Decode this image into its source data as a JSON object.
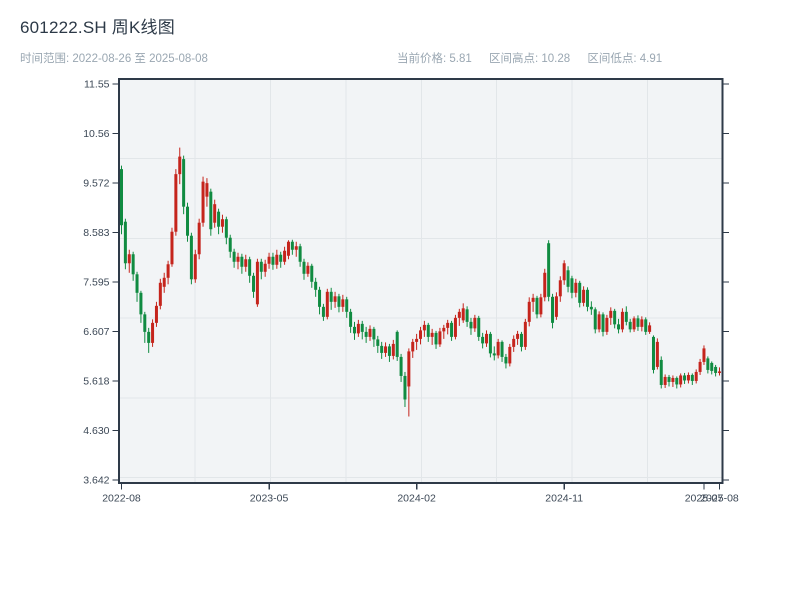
{
  "header": {
    "title": "601222.SH 周K线图",
    "subtitle": "时间范围: 2022-08-26 至 2025-08-08",
    "info": {
      "current": "当前价格: 5.81",
      "range_high": "区间高点: 10.28",
      "range_low": "区间低点: 4.91"
    }
  },
  "chart_data": {
    "type": "candlestick",
    "title": "601222.SH 周K线图",
    "frequency": "weekly",
    "date_start": "2022-08-26",
    "date_end": "2025-08-08",
    "current_price": 5.81,
    "range_high": 10.28,
    "range_low": 4.91,
    "ylim": [
      3.642,
      11.55
    ],
    "y_ticks": [
      "11.55",
      "10.56",
      "9.572",
      "8.583",
      "7.595",
      "6.607",
      "5.618",
      "4.630",
      "3.642"
    ],
    "x_ticks": [
      {
        "week_index": 0,
        "label": "2022-08"
      },
      {
        "week_index": 38,
        "label": "2023-05"
      },
      {
        "week_index": 76,
        "label": "2024-02"
      },
      {
        "week_index": 114,
        "label": "2024-11"
      },
      {
        "week_index": 150,
        "label": "2025-07"
      },
      {
        "week_index": 154,
        "label": "2025-08"
      }
    ],
    "up_color": "#c5241c",
    "down_color": "#108b41",
    "plot_bg": "#f2f4f6",
    "grid_color": "#e2e6e9",
    "axis_color": "#2e3a48",
    "tick_label_color": "#3c4856",
    "ohlc_format": [
      "open",
      "close",
      "low",
      "high"
    ],
    "ohlc": [
      [
        9.85,
        8.73,
        8.55,
        9.92
      ],
      [
        8.8,
        7.97,
        7.85,
        8.86
      ],
      [
        7.97,
        8.15,
        7.78,
        8.24
      ],
      [
        8.15,
        7.75,
        7.62,
        8.2
      ],
      [
        7.75,
        7.38,
        7.2,
        7.8
      ],
      [
        7.38,
        6.95,
        6.78,
        7.42
      ],
      [
        6.95,
        6.6,
        6.38,
        7.0
      ],
      [
        6.6,
        6.38,
        6.18,
        6.68
      ],
      [
        6.38,
        6.78,
        6.3,
        6.85
      ],
      [
        6.78,
        7.12,
        6.7,
        7.2
      ],
      [
        7.12,
        7.58,
        7.05,
        7.66
      ],
      [
        7.5,
        7.68,
        7.38,
        7.78
      ],
      [
        7.68,
        7.95,
        7.55,
        8.02
      ],
      [
        7.95,
        8.6,
        7.9,
        8.68
      ],
      [
        8.6,
        9.75,
        8.52,
        9.85
      ],
      [
        9.75,
        10.1,
        9.55,
        10.28
      ],
      [
        10.05,
        9.1,
        8.95,
        10.12
      ],
      [
        9.1,
        8.52,
        8.4,
        9.18
      ],
      [
        8.52,
        7.65,
        7.55,
        8.58
      ],
      [
        7.65,
        8.15,
        7.58,
        8.24
      ],
      [
        8.15,
        8.78,
        8.05,
        8.86
      ],
      [
        8.78,
        9.6,
        8.7,
        9.7
      ],
      [
        9.3,
        9.57,
        9.1,
        9.67
      ],
      [
        9.4,
        8.65,
        8.52,
        9.46
      ],
      [
        8.78,
        9.15,
        8.68,
        9.24
      ],
      [
        9.0,
        8.7,
        8.55,
        9.06
      ],
      [
        8.7,
        8.85,
        8.58,
        8.94
      ],
      [
        8.85,
        8.48,
        8.35,
        8.9
      ],
      [
        8.48,
        8.2,
        8.08,
        8.54
      ],
      [
        8.2,
        8.0,
        7.88,
        8.26
      ],
      [
        8.0,
        8.1,
        7.85,
        8.18
      ],
      [
        8.1,
        7.9,
        7.76,
        8.16
      ],
      [
        7.9,
        8.05,
        7.8,
        8.14
      ],
      [
        8.05,
        7.72,
        7.58,
        8.1
      ],
      [
        7.72,
        7.4,
        7.28,
        7.78
      ],
      [
        7.15,
        8.0,
        7.1,
        8.06
      ],
      [
        8.0,
        7.8,
        7.65,
        8.06
      ],
      [
        7.8,
        7.96,
        7.7,
        8.04
      ],
      [
        7.96,
        8.1,
        7.86,
        8.18
      ],
      [
        8.1,
        7.94,
        7.84,
        8.18
      ],
      [
        7.94,
        8.14,
        7.86,
        8.24
      ],
      [
        8.14,
        8.0,
        7.88,
        8.2
      ],
      [
        8.0,
        8.22,
        7.94,
        8.3
      ],
      [
        8.12,
        8.4,
        8.05,
        8.43
      ],
      [
        8.4,
        8.24,
        8.14,
        8.44
      ],
      [
        8.24,
        8.31,
        8.1,
        8.4
      ],
      [
        8.31,
        8.0,
        7.9,
        8.36
      ],
      [
        8.0,
        7.76,
        7.64,
        8.06
      ],
      [
        7.76,
        7.92,
        7.7,
        7.99
      ],
      [
        7.92,
        7.6,
        7.48,
        7.96
      ],
      [
        7.6,
        7.44,
        7.3,
        7.68
      ],
      [
        7.44,
        7.1,
        6.95,
        7.5
      ],
      [
        7.1,
        6.9,
        6.82,
        7.16
      ],
      [
        6.9,
        7.4,
        6.85,
        7.46
      ],
      [
        7.4,
        7.2,
        7.04,
        7.48
      ],
      [
        7.2,
        7.31,
        7.08,
        7.4
      ],
      [
        7.31,
        7.1,
        6.99,
        7.36
      ],
      [
        7.1,
        7.25,
        7.0,
        7.34
      ],
      [
        7.25,
        7.0,
        6.88,
        7.3
      ],
      [
        7.0,
        6.7,
        6.58,
        7.06
      ],
      [
        6.7,
        6.57,
        6.44,
        6.8
      ],
      [
        6.57,
        6.76,
        6.5,
        6.84
      ],
      [
        6.76,
        6.6,
        6.45,
        6.82
      ],
      [
        6.6,
        6.5,
        6.38,
        6.7
      ],
      [
        6.5,
        6.66,
        6.42,
        6.73
      ],
      [
        6.66,
        6.45,
        6.3,
        6.7
      ],
      [
        6.45,
        6.32,
        6.18,
        6.52
      ],
      [
        6.32,
        6.18,
        6.06,
        6.4
      ],
      [
        6.18,
        6.31,
        6.1,
        6.39
      ],
      [
        6.31,
        6.12,
        6.0,
        6.36
      ],
      [
        6.12,
        6.36,
        6.05,
        6.44
      ],
      [
        6.6,
        6.1,
        6.02,
        6.63
      ],
      [
        6.1,
        5.72,
        5.6,
        6.16
      ],
      [
        5.72,
        5.25,
        5.1,
        5.8
      ],
      [
        5.51,
        6.21,
        4.91,
        6.27
      ],
      [
        6.21,
        6.4,
        6.08,
        6.46
      ],
      [
        6.4,
        6.46,
        6.24,
        6.56
      ],
      [
        6.46,
        6.63,
        6.35,
        6.7
      ],
      [
        6.63,
        6.74,
        6.5,
        6.82
      ],
      [
        6.74,
        6.5,
        6.4,
        6.78
      ],
      [
        6.5,
        6.58,
        6.34,
        6.66
      ],
      [
        6.58,
        6.35,
        6.26,
        6.62
      ],
      [
        6.35,
        6.61,
        6.3,
        6.68
      ],
      [
        6.61,
        6.68,
        6.46,
        6.74
      ],
      [
        6.68,
        6.78,
        6.55,
        6.84
      ],
      [
        6.78,
        6.5,
        6.42,
        6.82
      ],
      [
        6.5,
        6.88,
        6.45,
        6.94
      ],
      [
        6.88,
        7.0,
        6.72,
        7.06
      ],
      [
        6.83,
        7.07,
        6.78,
        7.17
      ],
      [
        7.05,
        6.8,
        6.7,
        7.11
      ],
      [
        6.8,
        6.67,
        6.54,
        6.88
      ],
      [
        6.67,
        6.88,
        6.6,
        6.94
      ],
      [
        6.88,
        6.5,
        6.42,
        6.92
      ],
      [
        6.5,
        6.37,
        6.27,
        6.58
      ],
      [
        6.37,
        6.56,
        6.3,
        6.63
      ],
      [
        6.56,
        6.17,
        6.09,
        6.6
      ],
      [
        6.17,
        6.13,
        6.03,
        6.31
      ],
      [
        6.13,
        6.4,
        6.07,
        6.46
      ],
      [
        6.4,
        6.1,
        6.0,
        6.43
      ],
      [
        6.1,
        5.97,
        5.87,
        6.16
      ],
      [
        5.97,
        6.3,
        5.91,
        6.36
      ],
      [
        6.3,
        6.46,
        6.2,
        6.53
      ],
      [
        6.46,
        6.56,
        6.34,
        6.62
      ],
      [
        6.56,
        6.3,
        6.21,
        6.6
      ],
      [
        6.3,
        6.8,
        6.24,
        6.86
      ],
      [
        6.8,
        7.2,
        6.71,
        7.29
      ],
      [
        7.2,
        7.28,
        7.0,
        7.36
      ],
      [
        7.28,
        6.95,
        6.87,
        7.32
      ],
      [
        6.95,
        7.29,
        6.89,
        7.36
      ],
      [
        7.29,
        7.78,
        7.21,
        7.86
      ],
      [
        8.37,
        7.3,
        7.21,
        8.43
      ],
      [
        7.3,
        6.78,
        6.67,
        7.36
      ],
      [
        6.9,
        7.31,
        6.84,
        7.39
      ],
      [
        7.31,
        7.63,
        7.2,
        7.71
      ],
      [
        7.63,
        7.97,
        7.54,
        8.03
      ],
      [
        7.83,
        7.5,
        7.39,
        7.91
      ],
      [
        7.67,
        7.38,
        7.27,
        7.72
      ],
      [
        7.38,
        7.58,
        7.29,
        7.66
      ],
      [
        7.58,
        7.18,
        7.09,
        7.62
      ],
      [
        7.18,
        7.44,
        7.11,
        7.51
      ],
      [
        7.44,
        7.1,
        7.01,
        7.49
      ],
      [
        7.1,
        7.05,
        6.94,
        7.21
      ],
      [
        7.05,
        6.65,
        6.57,
        7.09
      ],
      [
        6.65,
        6.95,
        6.59,
        7.01
      ],
      [
        6.95,
        6.6,
        6.51,
        6.99
      ],
      [
        6.6,
        6.88,
        6.54,
        6.94
      ],
      [
        6.88,
        7.02,
        6.74,
        7.09
      ],
      [
        7.02,
        6.75,
        6.67,
        7.06
      ],
      [
        6.75,
        6.65,
        6.57,
        6.86
      ],
      [
        6.65,
        7.0,
        6.59,
        7.07
      ],
      [
        7.0,
        6.8,
        6.73,
        7.11
      ],
      [
        6.8,
        6.65,
        6.59,
        6.86
      ],
      [
        6.65,
        6.87,
        6.6,
        6.91
      ],
      [
        6.87,
        6.7,
        6.62,
        6.93
      ],
      [
        6.7,
        6.85,
        6.61,
        6.91
      ],
      [
        6.85,
        6.6,
        6.54,
        6.89
      ],
      [
        6.6,
        6.73,
        6.56,
        6.79
      ],
      [
        6.5,
        5.84,
        5.77,
        6.53
      ],
      [
        5.9,
        6.4,
        5.85,
        6.47
      ],
      [
        6.04,
        5.54,
        5.47,
        6.11
      ],
      [
        5.54,
        5.7,
        5.48,
        5.75
      ],
      [
        5.7,
        5.6,
        5.51,
        5.74
      ],
      [
        5.6,
        5.68,
        5.5,
        5.73
      ],
      [
        5.68,
        5.55,
        5.47,
        5.71
      ],
      [
        5.55,
        5.73,
        5.49,
        5.77
      ],
      [
        5.73,
        5.63,
        5.56,
        5.78
      ],
      [
        5.63,
        5.74,
        5.57,
        5.79
      ],
      [
        5.74,
        5.62,
        5.54,
        5.77
      ],
      [
        5.62,
        5.8,
        5.57,
        5.85
      ],
      [
        5.8,
        6.0,
        5.74,
        6.06
      ],
      [
        6.0,
        6.27,
        5.94,
        6.33
      ],
      [
        6.07,
        5.84,
        5.77,
        6.11
      ],
      [
        5.98,
        5.82,
        5.75,
        6.01
      ],
      [
        5.9,
        5.78,
        5.71,
        5.94
      ],
      [
        5.78,
        5.81,
        5.73,
        5.89
      ]
    ]
  }
}
